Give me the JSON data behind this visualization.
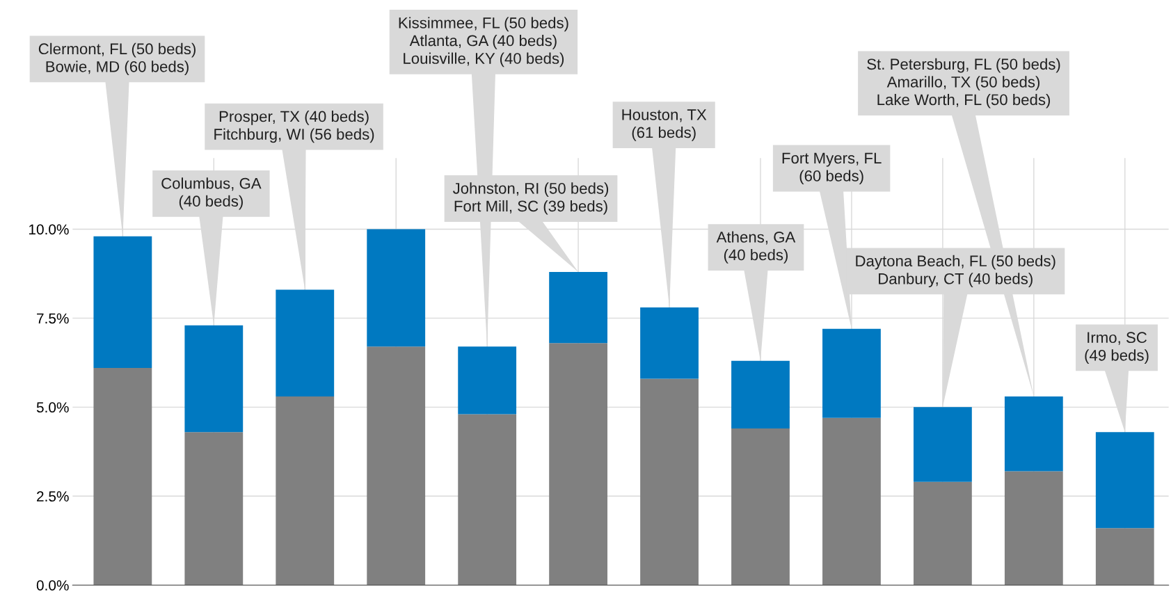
{
  "chart_data": {
    "type": "bar",
    "stacked": true,
    "categories": [
      null,
      null,
      null,
      null,
      null,
      null,
      null,
      null,
      null,
      null,
      null,
      null
    ],
    "series": [
      {
        "color": "#808080",
        "values": [
          6.1,
          4.3,
          5.3,
          6.7,
          4.8,
          6.8,
          5.8,
          4.4,
          4.7,
          2.9,
          3.2,
          1.6
        ]
      },
      {
        "color": "#0079c1",
        "values": [
          3.7,
          3.0,
          3.0,
          3.3,
          1.9,
          2.0,
          2.0,
          1.9,
          2.5,
          2.1,
          2.1,
          2.7
        ]
      }
    ],
    "ylim": [
      0,
      12
    ],
    "yticks": [
      {
        "value": 0,
        "label": "0.0%"
      },
      {
        "value": 2.5,
        "label": "2.5%"
      },
      {
        "value": 5,
        "label": "5.0%"
      },
      {
        "value": 7.5,
        "label": "7.5%"
      },
      {
        "value": 10,
        "label": "10.0%"
      }
    ],
    "grid": true,
    "annotations": [
      "Clermont, FL (50 beds)\nBowie, MD (60 beds)",
      "Columbus, GA\n(40 beds)",
      "Prosper, TX (40 beds)\nFitchburg, WI (56 beds)",
      "Kissimmee, FL (50 beds)\nAtlanta, GA (40 beds)\nLouisville, KY (40 beds)",
      "Johnston, RI (50 beds)\nFort Mill, SC (39 beds)",
      "Houston, TX\n(61 beds)",
      "Athens, GA\n(40 beds)",
      "Fort Myers, FL\n(60 beds)",
      "Daytona Beach, FL (50 beds)\nDanbury, CT (40 beds)",
      "St. Petersburg, FL (50 beds)\nAmarillo, TX (50 beds)\nLake Worth, FL (50 beds)",
      "Irmo, SC\n(49 beds)"
    ]
  }
}
